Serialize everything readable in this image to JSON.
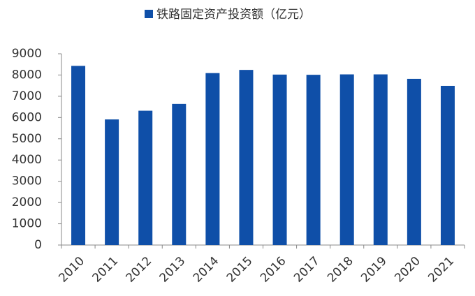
{
  "chart_data": {
    "type": "bar",
    "categories": [
      "2010",
      "2011",
      "2012",
      "2013",
      "2014",
      "2015",
      "2016",
      "2017",
      "2018",
      "2019",
      "2020",
      "2021"
    ],
    "series": [
      {
        "name": "铁路固定资产投资额（亿元）",
        "color": "#0f4fa8",
        "values": [
          8430,
          5910,
          6320,
          6640,
          8090,
          8240,
          8020,
          8010,
          8030,
          8030,
          7820,
          7490
        ]
      }
    ],
    "ylim": [
      0,
      9000
    ],
    "yticks": [
      0,
      1000,
      2000,
      3000,
      4000,
      5000,
      6000,
      7000,
      8000,
      9000
    ],
    "grid": false,
    "legend": "top"
  }
}
